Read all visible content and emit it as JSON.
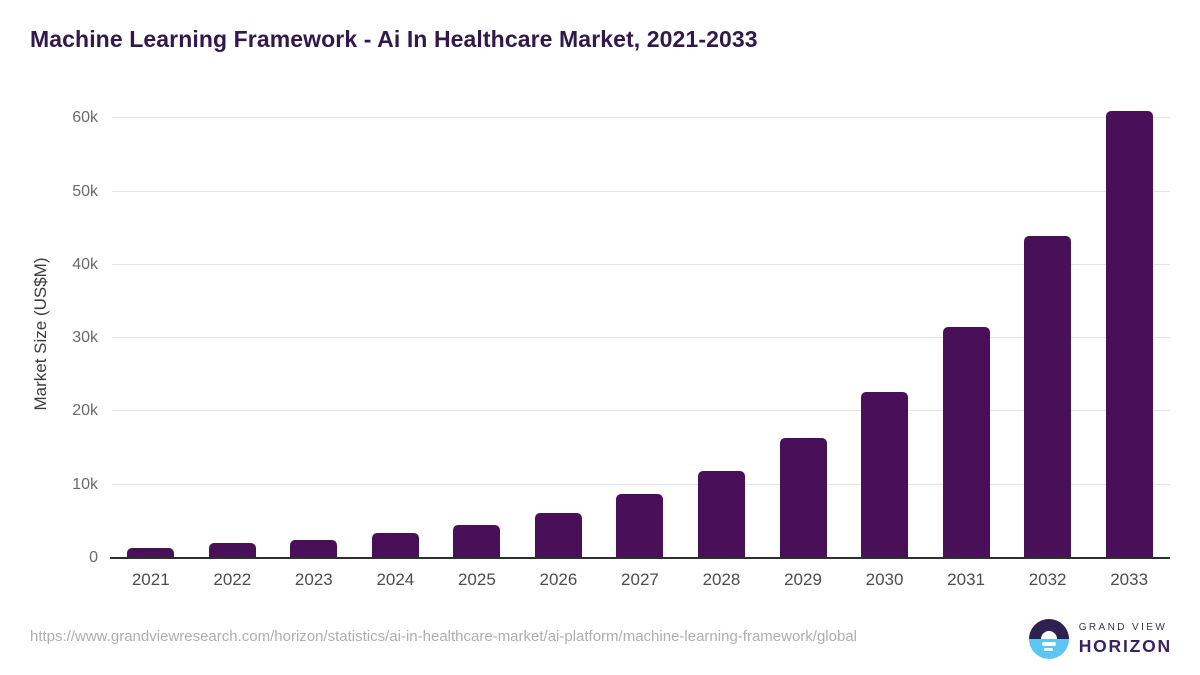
{
  "chart_data": {
    "type": "bar",
    "title": "Machine Learning Framework - Ai In Healthcare Market, 2021-2033",
    "xlabel": "",
    "ylabel": "Market Size (US$M)",
    "unit": "US$M",
    "categories": [
      "2021",
      "2022",
      "2023",
      "2024",
      "2025",
      "2026",
      "2027",
      "2028",
      "2029",
      "2030",
      "2031",
      "2032",
      "2033"
    ],
    "values": [
      1400,
      2000,
      2500,
      3450,
      4500,
      6200,
      8700,
      11900,
      16350,
      22650,
      31500,
      43900,
      61000
    ],
    "ylim": [
      0,
      61000
    ],
    "yticks": [
      {
        "value": 0,
        "label": "0"
      },
      {
        "value": 10000,
        "label": "10k"
      },
      {
        "value": 20000,
        "label": "20k"
      },
      {
        "value": 30000,
        "label": "30k"
      },
      {
        "value": 40000,
        "label": "40k"
      },
      {
        "value": 50000,
        "label": "50k"
      },
      {
        "value": 60000,
        "label": "60k"
      }
    ],
    "grid": true,
    "legend": false,
    "bar_color": "#491059"
  },
  "footer": {
    "source_url": "https://www.grandviewresearch.com/horizon/statistics/ai-in-healthcare-market/ai-platform/machine-learning-framework/global",
    "logo": {
      "icon": "horizon-sunrise-icon",
      "line1": "GRAND VIEW",
      "line2": "HORIZON"
    }
  },
  "colors": {
    "title": "#31194e",
    "bar": "#491059",
    "gridline": "#e4e4e4",
    "axis_line": "#2e2e2e",
    "y_tick": "#6a6a6a",
    "x_tick": "#4d4d4d",
    "axis_title": "#3c3c3c",
    "url_text": "#aeaeae",
    "logo_navy": "#2c2150",
    "logo_blue": "#5ac6f1",
    "logo_horizon_text": "#3a2166",
    "logo_grandview_text": "#35344f"
  }
}
